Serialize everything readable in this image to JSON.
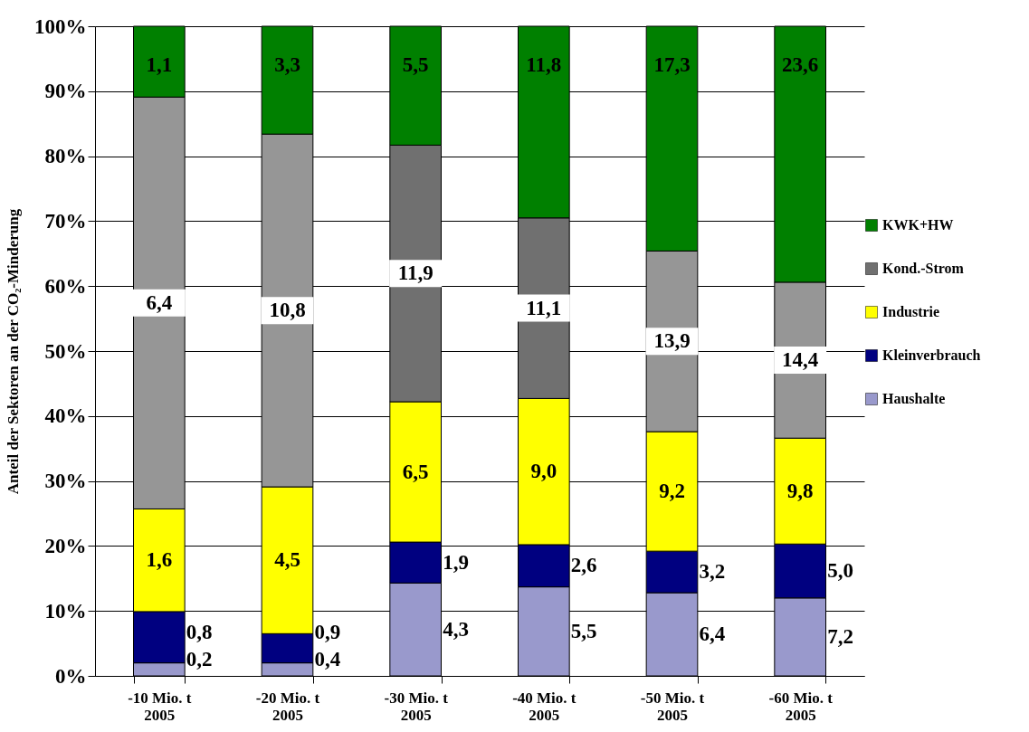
{
  "chart_data": {
    "type": "bar",
    "stacked": true,
    "ylabel": "Anteil der Sektoren an der CO₂-Minderung",
    "categories": [
      "-10 Mio. t\n2005",
      "-20 Mio. t\n2005",
      "-30 Mio. t\n2005",
      "-40 Mio. t\n2005",
      "-50 Mio. t\n2005",
      "-60 Mio. t\n2005"
    ],
    "series": [
      {
        "name": "Haushalte",
        "color": "#9999cc",
        "values": [
          2.0,
          2.0,
          14.3,
          13.7,
          12.8,
          12.0
        ]
      },
      {
        "name": "Kleinverbrauch",
        "color": "#000080",
        "values": [
          7.9,
          4.5,
          6.3,
          6.5,
          6.4,
          8.3
        ]
      },
      {
        "name": "Industrie",
        "color": "#ffff00",
        "values": [
          15.8,
          22.6,
          21.6,
          22.5,
          18.4,
          16.3
        ]
      },
      {
        "name": "Kond.-Strom",
        "color": "#707070",
        "colors": [
          "#969696",
          "#969696",
          "#707070",
          "#707070",
          "#969696",
          "#969696"
        ],
        "values": [
          63.4,
          54.3,
          39.5,
          27.8,
          27.8,
          24.0
        ]
      },
      {
        "name": "KWK+HW",
        "color": "#008000",
        "values": [
          10.9,
          16.6,
          18.3,
          29.5,
          34.6,
          39.4
        ]
      }
    ],
    "annotations": [
      "0,2",
      "0,8",
      "1,6",
      "6,4",
      "1,1",
      "0,4",
      "0,9",
      "4,5",
      "10,8",
      "3,3",
      "4,3",
      "1,9",
      "6,5",
      "11,9",
      "5,5",
      "5,5",
      "2,6",
      "9,0",
      "11,1",
      "11,8",
      "6,4",
      "3,2",
      "9,2",
      "13,9",
      "17,3",
      "7,2",
      "5,0",
      "9,8",
      "14,4",
      "23,6"
    ],
    "ylim": [
      0,
      100
    ],
    "yticks": [
      {
        "value": 0,
        "label": "0%"
      },
      {
        "value": 10,
        "label": "10%"
      },
      {
        "value": 20,
        "label": "20%"
      },
      {
        "value": 30,
        "label": "30%"
      },
      {
        "value": 40,
        "label": "40%"
      },
      {
        "value": 50,
        "label": "50%"
      },
      {
        "value": 60,
        "label": "60%"
      },
      {
        "value": 70,
        "label": "70%"
      },
      {
        "value": 80,
        "label": "80%"
      },
      {
        "value": 90,
        "label": "90%"
      },
      {
        "value": 100,
        "label": "100%"
      }
    ],
    "grid": "y",
    "legend": "right"
  }
}
